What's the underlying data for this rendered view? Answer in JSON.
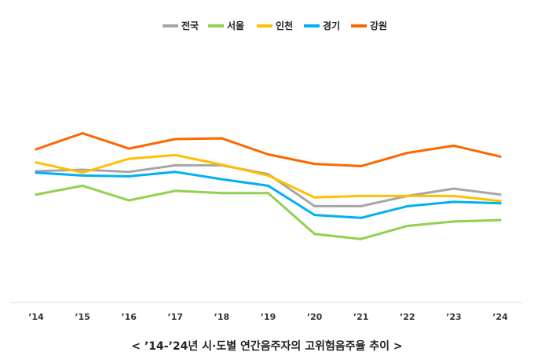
{
  "chart_data": {
    "type": "line",
    "title": "< ’14-’24년 시·도별 연간음주자의 고위험음주율 추이 >",
    "xlabel": "",
    "ylabel": "",
    "categories": [
      "’14",
      "’15",
      "’16",
      "’17",
      "’18",
      "’19",
      "’20",
      "’21",
      "’22",
      "’23",
      "’24"
    ],
    "ylim": [
      0,
      35
    ],
    "grid": false,
    "legend_position": "top",
    "series": [
      {
        "name": "전국",
        "color": "#A6A6A6",
        "values": [
          18.0,
          18.2,
          17.9,
          18.8,
          18.8,
          17.6,
          13.2,
          13.2,
          14.6,
          15.6,
          14.8
        ]
      },
      {
        "name": "서울",
        "color": "#92D050",
        "values": [
          14.8,
          16.0,
          14.0,
          15.3,
          15.0,
          15.0,
          9.4,
          8.7,
          10.5,
          11.1,
          11.3
        ]
      },
      {
        "name": "인천",
        "color": "#FFC000",
        "values": [
          19.2,
          17.8,
          19.7,
          20.2,
          18.9,
          17.4,
          14.4,
          14.6,
          14.6,
          14.6,
          13.9
        ]
      },
      {
        "name": "경기",
        "color": "#00B0F0",
        "values": [
          17.8,
          17.4,
          17.3,
          17.9,
          16.9,
          16.0,
          12.0,
          11.6,
          13.2,
          13.8,
          13.6
        ]
      },
      {
        "name": "강원",
        "color": "#FF6600",
        "values": [
          21.0,
          23.2,
          21.1,
          22.4,
          22.5,
          20.3,
          19.0,
          18.7,
          20.5,
          21.5,
          20.0
        ]
      }
    ]
  }
}
